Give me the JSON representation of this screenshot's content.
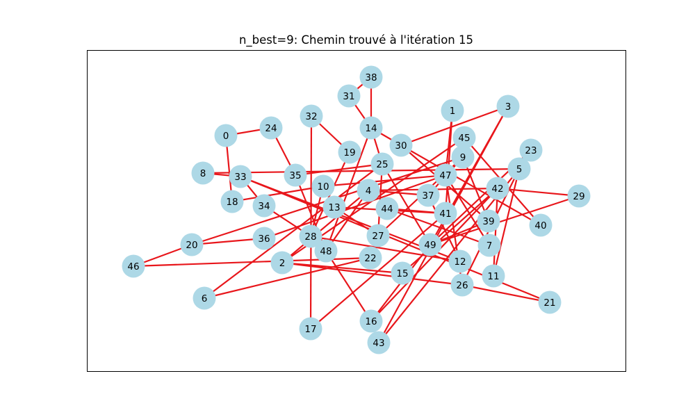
{
  "title": "n_best=9: Chemin trouvé à l'itération 15",
  "colors": {
    "edge": "#e8161b",
    "node_fill": "#add8e6",
    "frame": "#000000",
    "background": "#ffffff"
  },
  "nodes": [
    {
      "id": "0"
    },
    {
      "id": "1"
    },
    {
      "id": "2"
    },
    {
      "id": "3"
    },
    {
      "id": "4"
    },
    {
      "id": "5"
    },
    {
      "id": "6"
    },
    {
      "id": "7"
    },
    {
      "id": "8"
    },
    {
      "id": "9"
    },
    {
      "id": "10"
    },
    {
      "id": "11"
    },
    {
      "id": "12"
    },
    {
      "id": "13"
    },
    {
      "id": "14"
    },
    {
      "id": "15"
    },
    {
      "id": "16"
    },
    {
      "id": "17"
    },
    {
      "id": "18"
    },
    {
      "id": "19"
    },
    {
      "id": "20"
    },
    {
      "id": "21"
    },
    {
      "id": "22"
    },
    {
      "id": "23"
    },
    {
      "id": "24"
    },
    {
      "id": "25"
    },
    {
      "id": "26"
    },
    {
      "id": "27"
    },
    {
      "id": "28"
    },
    {
      "id": "29"
    },
    {
      "id": "30"
    },
    {
      "id": "31"
    },
    {
      "id": "32"
    },
    {
      "id": "33"
    },
    {
      "id": "34"
    },
    {
      "id": "35"
    },
    {
      "id": "36"
    },
    {
      "id": "37"
    },
    {
      "id": "38"
    },
    {
      "id": "39"
    },
    {
      "id": "40"
    },
    {
      "id": "41"
    },
    {
      "id": "42"
    },
    {
      "id": "43"
    },
    {
      "id": "44"
    },
    {
      "id": "45"
    },
    {
      "id": "46"
    },
    {
      "id": "47"
    },
    {
      "id": "48"
    },
    {
      "id": "49"
    }
  ],
  "edges": [
    [
      "0",
      "18"
    ],
    [
      "0",
      "24"
    ],
    [
      "24",
      "35"
    ],
    [
      "35",
      "48"
    ],
    [
      "48",
      "4"
    ],
    [
      "4",
      "37"
    ],
    [
      "37",
      "9"
    ],
    [
      "9",
      "20"
    ],
    [
      "20",
      "46"
    ],
    [
      "46",
      "22"
    ],
    [
      "22",
      "6"
    ],
    [
      "6",
      "25"
    ],
    [
      "25",
      "14"
    ],
    [
      "14",
      "38"
    ],
    [
      "38",
      "31"
    ],
    [
      "31",
      "14"
    ],
    [
      "14",
      "30"
    ],
    [
      "30",
      "40"
    ],
    [
      "40",
      "45"
    ],
    [
      "45",
      "2"
    ],
    [
      "2",
      "15"
    ],
    [
      "15",
      "42"
    ],
    [
      "42",
      "16"
    ],
    [
      "16",
      "49"
    ],
    [
      "49",
      "29"
    ],
    [
      "29",
      "42"
    ],
    [
      "42",
      "4"
    ],
    [
      "4",
      "2"
    ],
    [
      "2",
      "26"
    ],
    [
      "26",
      "21"
    ],
    [
      "21",
      "33"
    ],
    [
      "33",
      "8"
    ],
    [
      "8",
      "5"
    ],
    [
      "5",
      "43"
    ],
    [
      "43",
      "3"
    ],
    [
      "3",
      "30"
    ],
    [
      "30",
      "39"
    ],
    [
      "39",
      "49"
    ],
    [
      "49",
      "3"
    ],
    [
      "33",
      "12"
    ],
    [
      "32",
      "19"
    ],
    [
      "19",
      "28"
    ],
    [
      "32",
      "17"
    ],
    [
      "28",
      "12"
    ],
    [
      "10",
      "47"
    ],
    [
      "47",
      "36"
    ],
    [
      "36",
      "20"
    ],
    [
      "18",
      "10"
    ],
    [
      "28",
      "10"
    ],
    [
      "34",
      "28"
    ],
    [
      "33",
      "34"
    ],
    [
      "47",
      "7"
    ],
    [
      "1",
      "47"
    ],
    [
      "1",
      "41"
    ],
    [
      "41",
      "17"
    ],
    [
      "47",
      "26"
    ],
    [
      "26",
      "5"
    ],
    [
      "5",
      "11"
    ],
    [
      "11",
      "42"
    ],
    [
      "23",
      "49"
    ],
    [
      "44",
      "41"
    ],
    [
      "44",
      "7"
    ],
    [
      "13",
      "41"
    ],
    [
      "13",
      "27"
    ],
    [
      "27",
      "25"
    ],
    [
      "25",
      "49"
    ],
    [
      "25",
      "35"
    ],
    [
      "12",
      "37"
    ],
    [
      "48",
      "16"
    ],
    [
      "48",
      "14"
    ],
    [
      "39",
      "9"
    ],
    [
      "27",
      "9"
    ]
  ]
}
